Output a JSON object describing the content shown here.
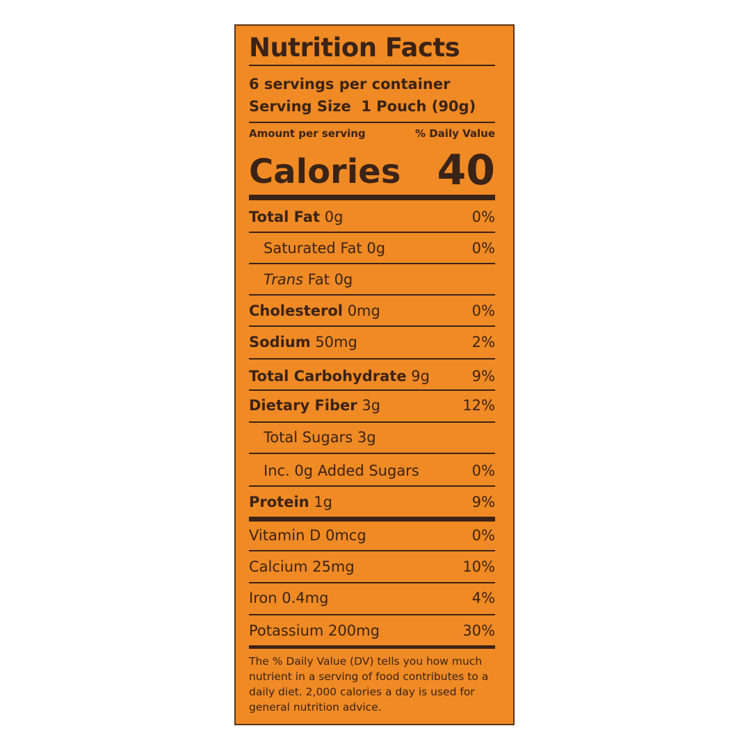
{
  "label": {
    "title": "Nutrition Facts",
    "servings_per_container": "6 servings per container",
    "serving_size": "Serving Size  1 Pouch (90g)",
    "amount_per_serving": "Amount per serving",
    "daily_value_header": "% Daily Value",
    "calories_label": "Calories",
    "calories_value": "40",
    "rows": [
      {
        "name": "Total Fat",
        "amount": "0g",
        "dv": "0%"
      },
      {
        "name": "Saturated Fat",
        "amount": "0g",
        "dv": "0%"
      },
      {
        "name": "Trans",
        "amount": "Fat 0g",
        "dv": ""
      },
      {
        "name": "Cholesterol",
        "amount": "0mg",
        "dv": "0%"
      },
      {
        "name": "Sodium",
        "amount": "50mg",
        "dv": "2%"
      },
      {
        "name": "Total Carbohydrate",
        "amount": "9g",
        "dv": "9%"
      },
      {
        "name": "Dietary Fiber",
        "amount": "3g",
        "dv": "12%"
      },
      {
        "name": "Total Sugars",
        "amount": "3g",
        "dv": ""
      },
      {
        "name": "Inc. 0g Added Sugars",
        "amount": "",
        "dv": "0%"
      },
      {
        "name": "Protein",
        "amount": "1g",
        "dv": "9%"
      },
      {
        "name": "Vitamin D",
        "amount": "0mcg",
        "dv": "0%"
      },
      {
        "name": "Calcium",
        "amount": "25mg",
        "dv": "10%"
      },
      {
        "name": "Iron",
        "amount": "0.4mg",
        "dv": "4%"
      },
      {
        "name": "Potassium",
        "amount": "200mg",
        "dv": "30%"
      }
    ],
    "footnote": "The % Daily Value (DV) tells you how much nutrient in a serving of food contributes to a daily diet. 2,000 calories a day is used for general nutrition advice."
  },
  "colors": {
    "background": "#f08a24",
    "text": "#3a2317"
  }
}
